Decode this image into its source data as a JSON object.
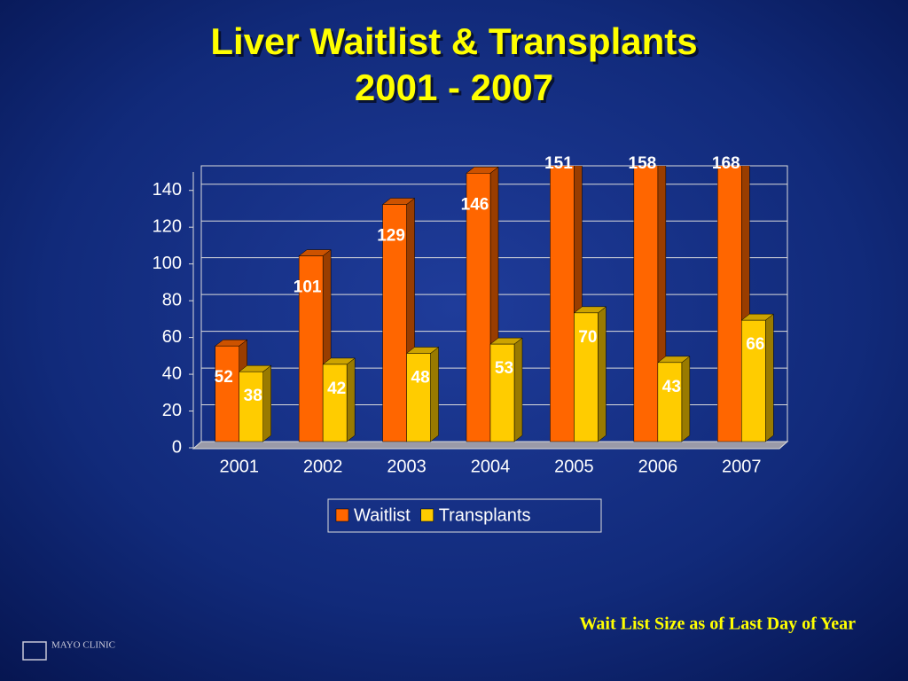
{
  "chart_data": {
    "type": "bar3d",
    "title": "Liver Waitlist & Transplants",
    "subtitle": "2001 - 2007",
    "categories": [
      "2001",
      "2002",
      "2003",
      "2004",
      "2005",
      "2006",
      "2007"
    ],
    "series": [
      {
        "name": "Waitlist",
        "color": "#ff6600",
        "values": [
          52,
          101,
          129,
          146,
          151,
          158,
          168
        ]
      },
      {
        "name": "Transplants",
        "color": "#ffcc00",
        "values": [
          38,
          42,
          48,
          53,
          70,
          43,
          66
        ]
      }
    ],
    "ylim": [
      0,
      150
    ],
    "yticks": [
      0,
      20,
      40,
      60,
      80,
      100,
      120,
      140
    ],
    "grid": true,
    "legend": "bottom",
    "footnote": "Wait List Size as of Last Day of Year",
    "logo": "MAYO CLINIC"
  }
}
